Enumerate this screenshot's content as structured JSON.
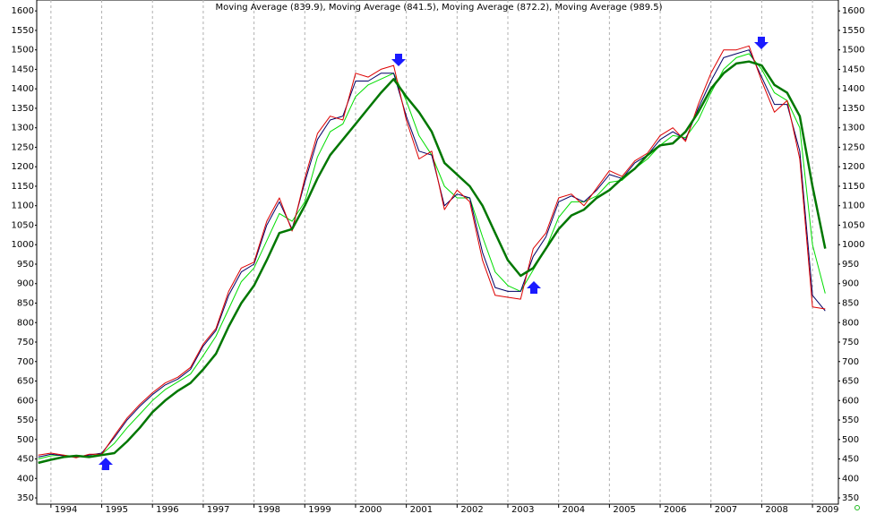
{
  "chart_data": {
    "type": "line",
    "title": "Moving Average (839.9), Moving Average (841.5), Moving Average (872.2), Moving Average (989.5)",
    "x": [
      1993.75,
      1994,
      1994.25,
      1994.5,
      1994.75,
      1995,
      1995.25,
      1995.5,
      1995.75,
      1996,
      1996.25,
      1996.5,
      1996.75,
      1997,
      1997.25,
      1997.5,
      1997.75,
      1998,
      1998.25,
      1998.5,
      1998.75,
      1999,
      1999.25,
      1999.5,
      1999.75,
      2000,
      2000.25,
      2000.5,
      2000.75,
      2001,
      2001.25,
      2001.5,
      2001.75,
      2002,
      2002.25,
      2002.5,
      2002.75,
      2003,
      2003.25,
      2003.5,
      2003.75,
      2004,
      2004.25,
      2004.5,
      2004.75,
      2005,
      2005.25,
      2005.5,
      2005.75,
      2006,
      2006.25,
      2006.5,
      2006.75,
      2007,
      2007.25,
      2007.5,
      2007.75,
      2008,
      2008.25,
      2008.5,
      2008.75,
      2009,
      2009.25
    ],
    "series": [
      {
        "color": "#00dd00",
        "width": 1,
        "values": [
          450,
          458,
          460,
          456,
          457,
          462,
          490,
          530,
          565,
          600,
          628,
          648,
          668,
          715,
          765,
          835,
          905,
          940,
          1010,
          1080,
          1060,
          1110,
          1225,
          1290,
          1310,
          1380,
          1410,
          1425,
          1440,
          1370,
          1280,
          1230,
          1150,
          1120,
          1120,
          1020,
          930,
          895,
          880,
          935,
          990,
          1070,
          1110,
          1110,
          1125,
          1160,
          1165,
          1195,
          1220,
          1255,
          1280,
          1275,
          1320,
          1390,
          1450,
          1480,
          1490,
          1450,
          1390,
          1370,
          1300,
          1000,
          875
        ]
      },
      {
        "color": "#000066",
        "width": 1,
        "values": [
          455,
          462,
          458,
          455,
          460,
          465,
          505,
          550,
          585,
          615,
          640,
          655,
          680,
          740,
          780,
          870,
          930,
          950,
          1050,
          1110,
          1040,
          1160,
          1270,
          1320,
          1330,
          1420,
          1420,
          1440,
          1440,
          1330,
          1240,
          1230,
          1100,
          1130,
          1120,
          980,
          890,
          880,
          880,
          970,
          1020,
          1110,
          1125,
          1110,
          1140,
          1180,
          1170,
          1210,
          1230,
          1270,
          1290,
          1270,
          1350,
          1420,
          1480,
          1490,
          1500,
          1430,
          1360,
          1360,
          1240,
          870,
          830
        ]
      },
      {
        "color": "#dd0000",
        "width": 1,
        "values": [
          460,
          465,
          460,
          453,
          462,
          462,
          510,
          555,
          590,
          620,
          645,
          660,
          685,
          745,
          785,
          880,
          940,
          955,
          1060,
          1120,
          1035,
          1170,
          1285,
          1330,
          1320,
          1440,
          1430,
          1450,
          1460,
          1320,
          1220,
          1240,
          1090,
          1140,
          1110,
          960,
          870,
          865,
          860,
          990,
          1030,
          1120,
          1130,
          1100,
          1145,
          1190,
          1175,
          1215,
          1235,
          1280,
          1300,
          1265,
          1360,
          1440,
          1500,
          1500,
          1510,
          1420,
          1340,
          1370,
          1220,
          840,
          835
        ]
      },
      {
        "color": "#007700",
        "width": 2.5,
        "values": [
          440,
          448,
          455,
          458,
          455,
          460,
          465,
          495,
          530,
          570,
          600,
          625,
          645,
          680,
          720,
          790,
          850,
          895,
          960,
          1030,
          1040,
          1100,
          1170,
          1230,
          1270,
          1310,
          1350,
          1390,
          1425,
          1380,
          1340,
          1290,
          1210,
          1180,
          1150,
          1100,
          1030,
          960,
          920,
          940,
          990,
          1040,
          1075,
          1090,
          1120,
          1140,
          1170,
          1195,
          1230,
          1255,
          1260,
          1290,
          1340,
          1400,
          1440,
          1465,
          1470,
          1460,
          1410,
          1390,
          1330,
          1150,
          990
        ]
      }
    ],
    "xlim": [
      1993.72,
      2009.51
    ],
    "xticks": [
      1994,
      1995,
      1996,
      1997,
      1998,
      1999,
      2000,
      2001,
      2002,
      2003,
      2004,
      2005,
      2006,
      2007,
      2008,
      2009
    ],
    "ylim": [
      334,
      1628
    ],
    "yticks": [
      350,
      400,
      450,
      500,
      550,
      600,
      650,
      700,
      750,
      800,
      850,
      900,
      950,
      1000,
      1050,
      1100,
      1150,
      1200,
      1250,
      1300,
      1350,
      1400,
      1450,
      1500,
      1550,
      1600
    ],
    "grid": true
  }
}
